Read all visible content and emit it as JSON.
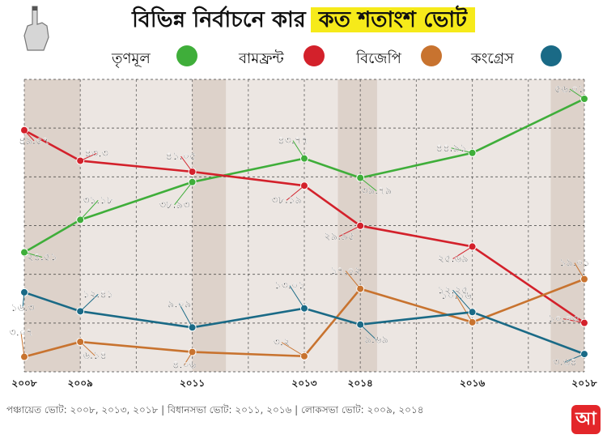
{
  "title": {
    "plain": "বিভিন্ন নির্বাচনে কার",
    "highlight": "কত শতাংশ ভোট"
  },
  "footer": "পঞ্চায়েত ভোট: ২০০৮, ২০১৩, ২০১৮  |  বিধানসভা ভোট: ২০১১, ২০১৬  |  লোকসভা ভোট: ২০০৯, ২০১৪",
  "logo_text": "আ",
  "chart_data": {
    "type": "line",
    "title": "বিভিন্ন নির্বাচনে কার কত শতাংশ ভোট",
    "x": [
      "২০০৮",
      "২০০৯",
      "২০১১",
      "২০১৩",
      "২০১৪",
      "২০১৬",
      "২০১৮"
    ],
    "x_values": [
      2008,
      2009,
      2011,
      2013,
      2014,
      2016,
      2018
    ],
    "ylim": [
      0,
      60
    ],
    "grid": true,
    "legend_position": "top",
    "series": [
      {
        "name": "তৃণমূল",
        "color": "#3fae3a",
        "values": [
          24.51,
          31.18,
          38.93,
          43.77,
          39.79,
          44.91,
          56.01
        ],
        "labels": [
          "২৪.৫১",
          "৩১.১৮",
          "৩৮.৯৩",
          "৪৩.৭৭",
          "৩৯.৭৯",
          "৪৪.৯১",
          "৫৬.০১"
        ]
      },
      {
        "name": "বামফ্রন্ট",
        "color": "#d3212b",
        "values": [
          49.57,
          43.3,
          41.05,
          38.19,
          29.95,
          25.69,
          10.03
        ],
        "labels": [
          "৪৯.৫৭",
          "৪৩.৩",
          "৪১.০৫",
          "৩৮.১৯",
          "২৯.৯৫",
          "২৫.৬৯",
          "১০.০৩"
        ]
      },
      {
        "name": "বিজেপি",
        "color": "#c8732f",
        "values": [
          3.07,
          6.14,
          4.06,
          3.2,
          17.02,
          10.16,
          19.01
        ],
        "labels": [
          "৩.০৭",
          "৬.১৪",
          "৪.০৬",
          "৩.২",
          "১৭.০২",
          "১০.১৬",
          "১৯.০১"
        ]
      },
      {
        "name": "কংগ্রেস",
        "color": "#1a6a86",
        "values": [
          16.3,
          12.41,
          9.09,
          13.01,
          9.69,
          12.25,
          3.64
        ],
        "labels": [
          "১৬.৩",
          "১২.৪১",
          "৯.০৯",
          "১৩.০১",
          "৯.৬৯",
          "১২.২৫",
          "৩.৬৪"
        ]
      }
    ]
  }
}
